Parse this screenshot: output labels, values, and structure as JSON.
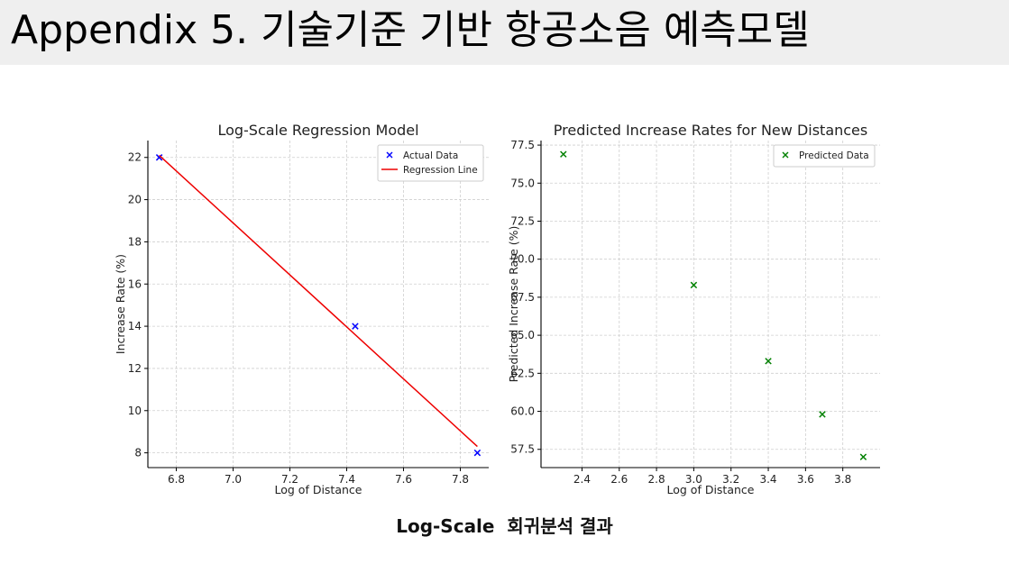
{
  "header": {
    "title": "Appendix 5. 기술기준 기반 항공소음 예측모델",
    "caption": "Log-Scale  회귀분석 결과"
  },
  "chart_data": [
    {
      "type": "scatter",
      "title": "Log-Scale Regression Model",
      "xlabel": "Log of Distance",
      "ylabel": "Increase Rate (%)",
      "xlim": [
        6.7,
        7.9
      ],
      "ylim": [
        7.3,
        22.8
      ],
      "xticks": [
        6.8,
        7.0,
        7.2,
        7.4,
        7.6,
        7.8
      ],
      "yticks": [
        8,
        10,
        12,
        14,
        16,
        18,
        20,
        22
      ],
      "grid": true,
      "legend_position": "top-right",
      "series": [
        {
          "name": "Actual Data",
          "kind": "scatter",
          "marker": "x",
          "color": "#0000ff",
          "points": [
            {
              "x": 6.74,
              "y": 22
            },
            {
              "x": 7.43,
              "y": 14
            },
            {
              "x": 7.86,
              "y": 8
            }
          ]
        },
        {
          "name": "Regression Line",
          "kind": "line",
          "color": "#ee0000",
          "points": [
            {
              "x": 6.74,
              "y": 22.1
            },
            {
              "x": 7.86,
              "y": 8.3
            }
          ]
        }
      ]
    },
    {
      "type": "scatter",
      "title": "Predicted Increase Rates for New Distances",
      "xlabel": "Log of Distance",
      "ylabel": "Predicted Increase Rate (%)",
      "xlim": [
        2.18,
        4.0
      ],
      "ylim": [
        56.3,
        77.8
      ],
      "xticks": [
        2.4,
        2.6,
        2.8,
        3.0,
        3.2,
        3.4,
        3.6,
        3.8
      ],
      "yticks": [
        57.5,
        60.0,
        62.5,
        65.0,
        67.5,
        70.0,
        72.5,
        75.0,
        77.5
      ],
      "grid": true,
      "legend_position": "top-right",
      "series": [
        {
          "name": "Predicted Data",
          "kind": "scatter",
          "marker": "x",
          "color": "#008000",
          "points": [
            {
              "x": 2.3,
              "y": 76.9
            },
            {
              "x": 3.0,
              "y": 68.3
            },
            {
              "x": 3.4,
              "y": 63.3
            },
            {
              "x": 3.69,
              "y": 59.8
            },
            {
              "x": 3.91,
              "y": 57.0
            }
          ]
        }
      ]
    }
  ]
}
